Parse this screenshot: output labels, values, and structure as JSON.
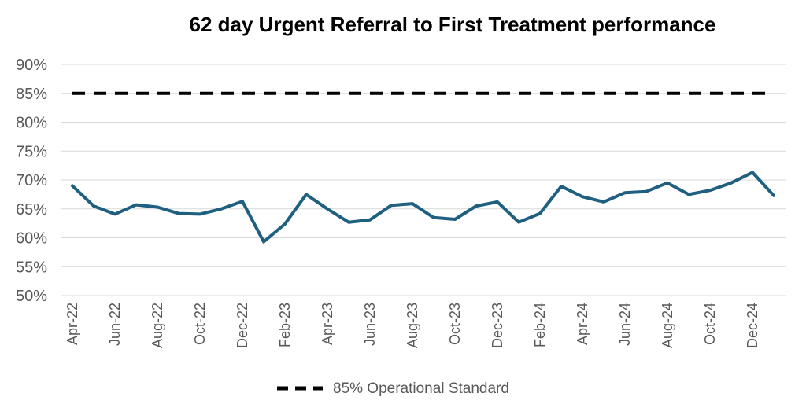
{
  "chart_data": {
    "type": "line",
    "title": "62 day Urgent Referral to First Treatment performance",
    "ylim": [
      0.5,
      0.9
    ],
    "yticks": [
      0.5,
      0.55,
      0.6,
      0.65,
      0.7,
      0.75,
      0.8,
      0.85,
      0.9
    ],
    "ytick_labels": [
      "50%",
      "55%",
      "60%",
      "65%",
      "70%",
      "75%",
      "80%",
      "85%",
      "90%"
    ],
    "grid": true,
    "legend_position": "bottom",
    "x": [
      "Apr-22",
      "May-22",
      "Jun-22",
      "Jul-22",
      "Aug-22",
      "Sep-22",
      "Oct-22",
      "Nov-22",
      "Dec-22",
      "Jan-23",
      "Feb-23",
      "Mar-23",
      "Apr-23",
      "May-23",
      "Jun-23",
      "Jul-23",
      "Aug-23",
      "Sep-23",
      "Oct-23",
      "Nov-23",
      "Dec-23",
      "Jan-24",
      "Feb-24",
      "Mar-24",
      "Apr-24",
      "May-24",
      "Jun-24",
      "Jul-24",
      "Aug-24",
      "Sep-24",
      "Oct-24",
      "Nov-24",
      "Dec-24",
      "Jan-25"
    ],
    "x_tick_labels": [
      "Apr-22",
      "Jun-22",
      "Aug-22",
      "Oct-22",
      "Dec-22",
      "Feb-23",
      "Apr-23",
      "Jun-23",
      "Aug-23",
      "Oct-23",
      "Dec-23",
      "Feb-24",
      "Apr-24",
      "Jun-24",
      "Aug-24",
      "Oct-24",
      "Dec-24"
    ],
    "series": [
      {
        "name": "",
        "color": "#1f5f7f",
        "values": [
          0.69,
          0.655,
          0.641,
          0.657,
          0.653,
          0.642,
          0.641,
          0.65,
          0.663,
          0.593,
          0.624,
          0.675,
          0.65,
          0.627,
          0.631,
          0.656,
          0.659,
          0.635,
          0.632,
          0.655,
          0.662,
          0.627,
          0.642,
          0.689,
          0.671,
          0.662,
          0.678,
          0.68,
          0.695,
          0.675,
          0.682,
          0.695,
          0.713,
          0.673
        ]
      },
      {
        "name": "85% Operational Standard",
        "color": "#000000",
        "style": "dashed",
        "values": [
          0.85,
          0.85,
          0.85,
          0.85,
          0.85,
          0.85,
          0.85,
          0.85,
          0.85,
          0.85,
          0.85,
          0.85,
          0.85,
          0.85,
          0.85,
          0.85,
          0.85,
          0.85,
          0.85,
          0.85,
          0.85,
          0.85,
          0.85,
          0.85,
          0.85,
          0.85,
          0.85,
          0.85,
          0.85,
          0.85,
          0.85,
          0.85,
          0.85,
          0.85
        ]
      }
    ]
  }
}
